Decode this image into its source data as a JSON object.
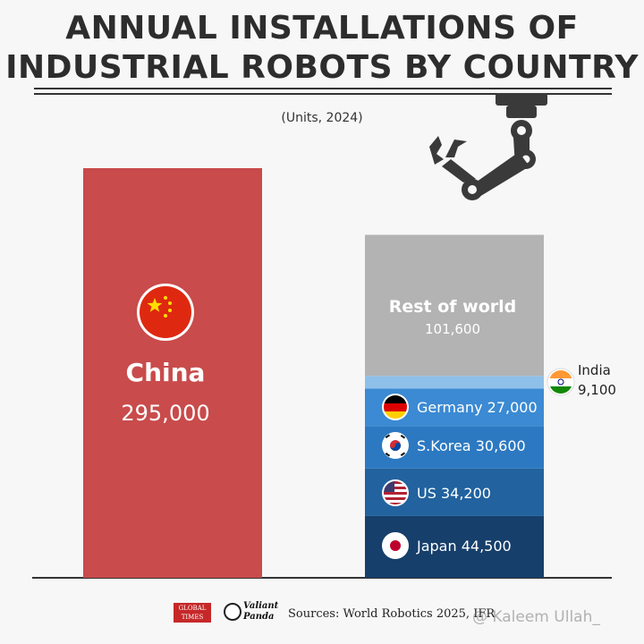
{
  "title_line1": "ANNUAL INSTALLATIONS OF",
  "title_line2": "INDUSTRIAL ROBOTS BY COUNTRY",
  "subtitle": "(Units, 2024)",
  "colors": {
    "china": "#c94b4b",
    "rest": "#b3b3b3",
    "india": "#8fc0ea",
    "germany": "#3b8ad3",
    "skorea": "#2c79c1",
    "us": "#21629f",
    "japan": "#163f6b"
  },
  "chart_data": {
    "type": "bar",
    "stacked": true,
    "title": "ANNUAL INSTALLATIONS OF INDUSTRIAL ROBOTS BY COUNTRY",
    "subtitle": "(Units, 2024)",
    "bars": [
      {
        "segments": [
          {
            "key": "china",
            "label": "China",
            "value_label": "295,000",
            "value": 295000,
            "icon": "china-flag-icon"
          }
        ]
      },
      {
        "segments": [
          {
            "key": "japan",
            "label": "Japan",
            "value_label": "44,500",
            "value": 44500,
            "icon": "japan-flag-icon"
          },
          {
            "key": "us",
            "label": "US",
            "value_label": "34,200",
            "value": 34200,
            "icon": "us-flag-icon"
          },
          {
            "key": "skorea",
            "label": "S.Korea",
            "value_label": "30,600",
            "value": 30600,
            "icon": "south-korea-flag-icon"
          },
          {
            "key": "germany",
            "label": "Germany",
            "value_label": "27,000",
            "value": 27000,
            "icon": "germany-flag-icon"
          },
          {
            "key": "india",
            "label": "India",
            "value_label": "9,100",
            "value": 9100,
            "icon": "india-flag-icon"
          },
          {
            "key": "rest",
            "label": "Rest of world",
            "value_label": "101,600",
            "value": 101600
          }
        ]
      }
    ]
  },
  "footer": {
    "source": "Sources: World Robotics 2025, IFR",
    "logo1_line1": "GLOBAL",
    "logo1_line2": "TIMES",
    "logo2_line1": "Valiant",
    "logo2_line2": "Panda",
    "watermark": "@ Kaleem Ullah_"
  }
}
